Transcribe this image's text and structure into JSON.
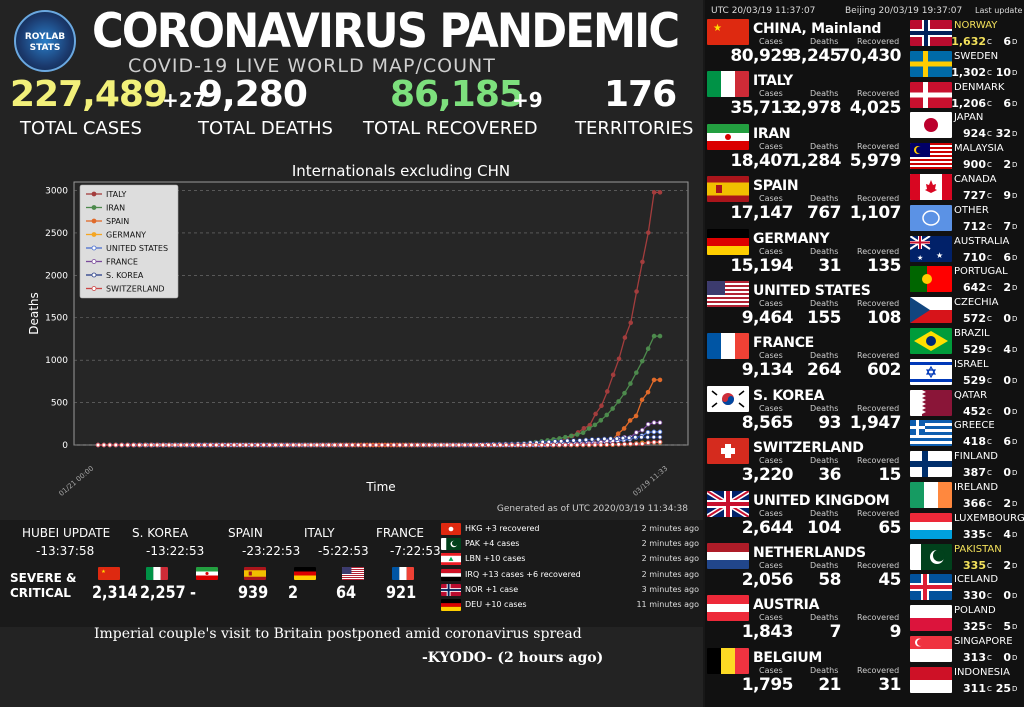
{
  "header": {
    "logo_text": "ROYLAB STATS",
    "title": "CORONAVIRUS PANDEMIC",
    "subtitle": "COVID-19 LIVE WORLD MAP/COUNT"
  },
  "stats": [
    {
      "value": "227,489",
      "increment": "+27",
      "label": "TOTAL CASES",
      "color": "#f2f07a"
    },
    {
      "value": "9,280",
      "increment": "",
      "label": "TOTAL DEATHS",
      "color": "#ffffff"
    },
    {
      "value": "86,185",
      "increment": "+9",
      "label": "TOTAL RECOVERED",
      "color": "#7de07d"
    },
    {
      "value": "176",
      "increment": "",
      "label": "TERRITORIES",
      "color": "#ffffff"
    }
  ],
  "chart_data": {
    "type": "line",
    "title": "Internationals excluding CHN",
    "xlabel": "Time",
    "ylabel": "Deaths",
    "ylim": [
      0,
      3100
    ],
    "yticks": [
      0,
      500,
      1000,
      1500,
      2000,
      2500,
      3000
    ],
    "grid": "horizontal dashed",
    "legend_position": "top-left",
    "generated": "Generated as of UTC 2020/03/19 11:34:38",
    "x_start_label": "01/21 00:00",
    "x_end_label": "03/19 11:33",
    "series": [
      {
        "name": "ITALY",
        "color": "#a33d3d",
        "values": [
          0,
          0,
          0,
          0,
          0,
          0,
          0,
          0,
          0,
          0,
          0,
          0,
          0,
          0,
          0,
          0,
          0,
          0,
          0,
          0,
          0,
          0,
          0,
          0,
          0,
          0,
          0,
          0,
          0,
          0,
          0,
          0,
          0,
          0,
          0,
          0,
          0,
          0,
          0,
          0,
          0,
          0,
          0,
          0,
          0,
          0,
          0,
          0,
          0,
          0,
          0,
          0,
          0,
          0,
          0,
          0,
          0,
          0,
          0,
          0,
          0,
          0,
          0,
          0,
          0,
          0,
          0,
          0,
          0,
          1,
          2,
          3,
          7,
          10,
          12,
          17,
          21,
          29,
          34,
          52,
          79,
          107,
          148,
          197,
          233,
          366,
          463,
          631,
          827,
          1016,
          1266,
          1441,
          1809,
          2158,
          2503,
          2978,
          2978
        ]
      },
      {
        "name": "IRAN",
        "color": "#4d8a4d",
        "values": [
          0,
          0,
          0,
          0,
          0,
          0,
          0,
          0,
          0,
          0,
          0,
          0,
          0,
          0,
          0,
          0,
          0,
          0,
          0,
          0,
          0,
          0,
          0,
          0,
          0,
          0,
          0,
          0,
          0,
          0,
          0,
          0,
          0,
          0,
          0,
          0,
          0,
          0,
          0,
          0,
          0,
          0,
          0,
          0,
          0,
          0,
          0,
          0,
          0,
          0,
          0,
          0,
          0,
          0,
          0,
          0,
          0,
          0,
          0,
          0,
          0,
          0,
          0,
          0,
          0,
          0,
          2,
          4,
          5,
          8,
          12,
          16,
          19,
          26,
          34,
          43,
          54,
          66,
          77,
          92,
          107,
          124,
          145,
          194,
          237,
          291,
          354,
          429,
          514,
          611,
          724,
          853,
          988,
          1135,
          1284,
          1284
        ]
      },
      {
        "name": "SPAIN",
        "color": "#e06a2a",
        "values": [
          0,
          0,
          0,
          0,
          0,
          0,
          0,
          0,
          0,
          0,
          0,
          0,
          0,
          0,
          0,
          0,
          0,
          0,
          0,
          0,
          0,
          0,
          0,
          0,
          0,
          0,
          0,
          0,
          0,
          0,
          0,
          0,
          0,
          0,
          0,
          0,
          0,
          0,
          0,
          0,
          0,
          0,
          0,
          0,
          0,
          0,
          0,
          0,
          0,
          0,
          0,
          0,
          0,
          0,
          0,
          0,
          0,
          0,
          0,
          0,
          0,
          0,
          0,
          0,
          0,
          0,
          0,
          0,
          0,
          0,
          0,
          0,
          0,
          0,
          0,
          0,
          0,
          1,
          2,
          3,
          5,
          10,
          17,
          28,
          35,
          54,
          55,
          133,
          195,
          289,
          342,
          533,
          623,
          767,
          767
        ]
      },
      {
        "name": "GERMANY",
        "color": "#f5a623",
        "values": [
          0,
          0,
          0,
          0,
          0,
          0,
          0,
          0,
          0,
          0,
          0,
          0,
          0,
          0,
          0,
          0,
          0,
          0,
          0,
          0,
          0,
          0,
          0,
          0,
          0,
          0,
          0,
          0,
          0,
          0,
          0,
          0,
          0,
          0,
          0,
          0,
          0,
          0,
          0,
          0,
          0,
          0,
          0,
          0,
          0,
          0,
          0,
          0,
          0,
          0,
          0,
          0,
          0,
          0,
          0,
          0,
          0,
          0,
          0,
          0,
          0,
          0,
          0,
          0,
          0,
          0,
          0,
          0,
          0,
          0,
          0,
          0,
          0,
          0,
          0,
          0,
          0,
          0,
          0,
          0,
          0,
          0,
          0,
          0,
          2,
          2,
          3,
          3,
          7,
          9,
          11,
          17,
          24,
          28,
          31,
          31
        ]
      },
      {
        "name": "UNITED STATES",
        "color": "#4a6fd0",
        "values": [
          0,
          0,
          0,
          0,
          0,
          0,
          0,
          0,
          0,
          0,
          0,
          0,
          0,
          0,
          0,
          0,
          0,
          0,
          0,
          0,
          0,
          0,
          0,
          0,
          0,
          0,
          0,
          0,
          0,
          0,
          0,
          0,
          0,
          0,
          0,
          0,
          0,
          0,
          0,
          0,
          0,
          0,
          0,
          0,
          0,
          0,
          0,
          0,
          0,
          0,
          0,
          0,
          0,
          0,
          0,
          0,
          0,
          0,
          0,
          0,
          0,
          0,
          0,
          0,
          0,
          0,
          0,
          0,
          0,
          0,
          0,
          0,
          1,
          1,
          2,
          6,
          9,
          11,
          12,
          15,
          19,
          22,
          26,
          30,
          38,
          41,
          48,
          57,
          68,
          86,
          109,
          150,
          155,
          155
        ]
      },
      {
        "name": "FRANCE",
        "color": "#7a4a9a",
        "values": [
          0,
          0,
          0,
          0,
          0,
          0,
          0,
          0,
          0,
          0,
          0,
          0,
          0,
          0,
          0,
          0,
          0,
          0,
          0,
          0,
          0,
          0,
          0,
          0,
          0,
          0,
          0,
          0,
          0,
          0,
          0,
          0,
          0,
          0,
          0,
          0,
          0,
          0,
          0,
          0,
          0,
          0,
          0,
          0,
          0,
          0,
          0,
          0,
          0,
          0,
          0,
          0,
          0,
          0,
          0,
          0,
          0,
          0,
          0,
          0,
          0,
          0,
          0,
          0,
          0,
          0,
          0,
          0,
          0,
          0,
          0,
          0,
          0,
          0,
          2,
          2,
          2,
          3,
          4,
          4,
          6,
          9,
          11,
          19,
          19,
          33,
          48,
          48,
          79,
          91,
          91,
          148,
          175,
          244,
          264,
          264
        ]
      },
      {
        "name": "S. KOREA",
        "color": "#2a3f8a",
        "values": [
          0,
          0,
          0,
          0,
          0,
          0,
          0,
          0,
          0,
          0,
          0,
          0,
          0,
          0,
          0,
          0,
          0,
          0,
          0,
          0,
          0,
          0,
          0,
          0,
          0,
          0,
          0,
          0,
          0,
          0,
          0,
          0,
          0,
          0,
          0,
          0,
          0,
          0,
          0,
          0,
          0,
          0,
          0,
          0,
          0,
          0,
          0,
          0,
          0,
          0,
          0,
          0,
          0,
          0,
          0,
          0,
          0,
          0,
          0,
          1,
          2,
          2,
          6,
          8,
          10,
          12,
          13,
          13,
          16,
          17,
          28,
          28,
          35,
          35,
          42,
          44,
          50,
          53,
          54,
          60,
          66,
          66,
          72,
          75,
          75,
          81,
          84,
          91,
          91,
          91,
          93,
          93
        ]
      },
      {
        "name": "SWITZERLAND",
        "color": "#c44",
        "values": [
          0,
          0,
          0,
          0,
          0,
          0,
          0,
          0,
          0,
          0,
          0,
          0,
          0,
          0,
          0,
          0,
          0,
          0,
          0,
          0,
          0,
          0,
          0,
          0,
          0,
          0,
          0,
          0,
          0,
          0,
          0,
          0,
          0,
          0,
          0,
          0,
          0,
          0,
          0,
          0,
          0,
          0,
          0,
          0,
          0,
          0,
          0,
          0,
          0,
          0,
          0,
          0,
          0,
          0,
          0,
          0,
          0,
          0,
          0,
          0,
          0,
          0,
          0,
          0,
          0,
          0,
          0,
          0,
          0,
          0,
          0,
          0,
          0,
          0,
          0,
          0,
          0,
          0,
          0,
          0,
          1,
          1,
          1,
          2,
          2,
          3,
          4,
          6,
          7,
          11,
          13,
          14,
          14,
          27,
          33,
          36
        ]
      }
    ]
  },
  "updates": [
    {
      "label": "HUBEI UPDATE",
      "time": "-13:37:58"
    },
    {
      "label": "S. KOREA",
      "time": "-13:22:53"
    },
    {
      "label": "SPAIN",
      "time": "-23:22:53"
    },
    {
      "label": "ITALY",
      "time": "-5:22:53"
    },
    {
      "label": "FRANCE",
      "time": "-7:22:53"
    }
  ],
  "severe": {
    "label_line1": "SEVERE &",
    "label_line2": "CRITICAL",
    "items": [
      {
        "flag": "china",
        "value": "2,314"
      },
      {
        "flag": "italy",
        "value": "2,257"
      },
      {
        "flag": "iran",
        "value": "-"
      },
      {
        "flag": "spain",
        "value": "939"
      },
      {
        "flag": "germany",
        "value": "2"
      },
      {
        "flag": "usa",
        "value": "64"
      },
      {
        "flag": "france",
        "value": "921"
      }
    ]
  },
  "news": [
    {
      "flag": "hongkong",
      "text": "HKG +3 recovered",
      "ago": "2 minutes ago"
    },
    {
      "flag": "pakistan",
      "text": "PAK +4 cases",
      "ago": "2 minutes ago"
    },
    {
      "flag": "lebanon",
      "text": "LBN +10 cases",
      "ago": "2 minutes ago"
    },
    {
      "flag": "iraq",
      "text": "IRQ +13 cases +6 recovered",
      "ago": "2 minutes ago"
    },
    {
      "flag": "norway",
      "text": "NOR +1 case",
      "ago": "3 minutes ago"
    },
    {
      "flag": "germany",
      "text": "DEU +10 cases",
      "ago": "11 minutes ago"
    }
  ],
  "headline": "Imperial couple's visit to Britain postponed amid coronavirus spread",
  "headline_source": "-KYODO- (2 hours ago)",
  "right_header": {
    "utc": "UTC 20/03/19 11:37:07",
    "beijing": "Beijing 20/03/19 19:37:07",
    "last": "Last update"
  },
  "col_labels": {
    "cases": "Cases",
    "deaths": "Deaths",
    "recovered": "Recovered"
  },
  "countries": [
    {
      "flag": "china",
      "name": "CHINA, Mainland",
      "cases": "80,929",
      "deaths": "3,245",
      "recovered": "70,430"
    },
    {
      "flag": "italy",
      "name": "ITALY",
      "cases": "35,713",
      "deaths": "2,978",
      "recovered": "4,025"
    },
    {
      "flag": "iran",
      "name": "IRAN",
      "cases": "18,407",
      "deaths": "1,284",
      "recovered": "5,979"
    },
    {
      "flag": "spain",
      "name": "SPAIN",
      "cases": "17,147",
      "deaths": "767",
      "recovered": "1,107"
    },
    {
      "flag": "germany",
      "name": "GERMANY",
      "cases": "15,194",
      "deaths": "31",
      "recovered": "135"
    },
    {
      "flag": "usa",
      "name": "UNITED STATES",
      "cases": "9,464",
      "deaths": "155",
      "recovered": "108"
    },
    {
      "flag": "france",
      "name": "FRANCE",
      "cases": "9,134",
      "deaths": "264",
      "recovered": "602"
    },
    {
      "flag": "skorea",
      "name": "S. KOREA",
      "cases": "8,565",
      "deaths": "93",
      "recovered": "1,947"
    },
    {
      "flag": "switzerland",
      "name": "SWITZERLAND",
      "cases": "3,220",
      "deaths": "36",
      "recovered": "15"
    },
    {
      "flag": "uk",
      "name": "UNITED KINGDOM",
      "cases": "2,644",
      "deaths": "104",
      "recovered": "65"
    },
    {
      "flag": "netherlands",
      "name": "NETHERLANDS",
      "cases": "2,056",
      "deaths": "58",
      "recovered": "45"
    },
    {
      "flag": "austria",
      "name": "AUSTRIA",
      "cases": "1,843",
      "deaths": "7",
      "recovered": "9"
    },
    {
      "flag": "belgium",
      "name": "BELGIUM",
      "cases": "1,795",
      "deaths": "21",
      "recovered": "31"
    }
  ],
  "small_countries": [
    {
      "flag": "norway",
      "name": "NORWAY",
      "cases": "1,632",
      "c": "C",
      "deaths": "6",
      "d": "D",
      "highlight": true
    },
    {
      "flag": "sweden",
      "name": "SWEDEN",
      "cases": "1,302",
      "c": "C",
      "deaths": "10",
      "d": "D",
      "highlight": false
    },
    {
      "flag": "denmark",
      "name": "DENMARK",
      "cases": "1,206",
      "c": "C",
      "deaths": "6",
      "d": "D",
      "highlight": false
    },
    {
      "flag": "japan",
      "name": "JAPAN",
      "cases": "924",
      "c": "C",
      "deaths": "32",
      "d": "D",
      "highlight": false
    },
    {
      "flag": "malaysia",
      "name": "MALAYSIA",
      "cases": "900",
      "c": "C",
      "deaths": "2",
      "d": "D",
      "highlight": false
    },
    {
      "flag": "canada",
      "name": "CANADA",
      "cases": "727",
      "c": "C",
      "deaths": "9",
      "d": "D",
      "highlight": false
    },
    {
      "flag": "other",
      "name": "OTHER",
      "cases": "712",
      "c": "C",
      "deaths": "7",
      "d": "D",
      "highlight": false
    },
    {
      "flag": "australia",
      "name": "AUSTRALIA",
      "cases": "710",
      "c": "C",
      "deaths": "6",
      "d": "D",
      "highlight": false
    },
    {
      "flag": "portugal",
      "name": "PORTUGAL",
      "cases": "642",
      "c": "C",
      "deaths": "2",
      "d": "D",
      "highlight": false
    },
    {
      "flag": "czechia",
      "name": "CZECHIA",
      "cases": "572",
      "c": "C",
      "deaths": "0",
      "d": "D",
      "highlight": false
    },
    {
      "flag": "brazil",
      "name": "BRAZIL",
      "cases": "529",
      "c": "C",
      "deaths": "4",
      "d": "D",
      "highlight": false
    },
    {
      "flag": "israel",
      "name": "ISRAEL",
      "cases": "529",
      "c": "C",
      "deaths": "0",
      "d": "D",
      "highlight": false
    },
    {
      "flag": "qatar",
      "name": "QATAR",
      "cases": "452",
      "c": "C",
      "deaths": "0",
      "d": "D",
      "highlight": false
    },
    {
      "flag": "greece",
      "name": "GREECE",
      "cases": "418",
      "c": "C",
      "deaths": "6",
      "d": "D",
      "highlight": false
    },
    {
      "flag": "finland",
      "name": "FINLAND",
      "cases": "387",
      "c": "C",
      "deaths": "0",
      "d": "D",
      "highlight": false
    },
    {
      "flag": "ireland",
      "name": "IRELAND",
      "cases": "366",
      "c": "C",
      "deaths": "2",
      "d": "D",
      "highlight": false
    },
    {
      "flag": "luxembourg",
      "name": "LUXEMBOURG",
      "cases": "335",
      "c": "C",
      "deaths": "4",
      "d": "D",
      "highlight": false
    },
    {
      "flag": "pakistan",
      "name": "PAKISTAN",
      "cases": "335",
      "c": "C",
      "deaths": "2",
      "d": "D",
      "highlight": true
    },
    {
      "flag": "iceland",
      "name": "ICELAND",
      "cases": "330",
      "c": "C",
      "deaths": "0",
      "d": "D",
      "highlight": false
    },
    {
      "flag": "poland",
      "name": "POLAND",
      "cases": "325",
      "c": "C",
      "deaths": "5",
      "d": "D",
      "highlight": false
    },
    {
      "flag": "singapore",
      "name": "SINGAPORE",
      "cases": "313",
      "c": "C",
      "deaths": "0",
      "d": "D",
      "highlight": false
    },
    {
      "flag": "indonesia",
      "name": "INDONESIA",
      "cases": "311",
      "c": "C",
      "deaths": "25",
      "d": "D",
      "highlight": false
    }
  ]
}
